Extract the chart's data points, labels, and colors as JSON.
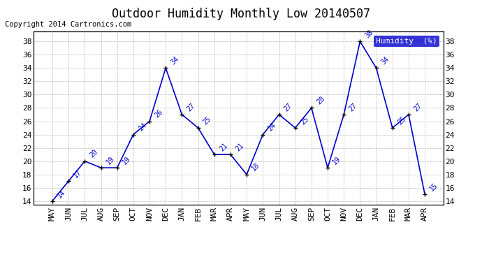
{
  "title": "Outdoor Humidity Monthly Low 20140507",
  "copyright": "Copyright 2014 Cartronics.com",
  "legend_label": "Humidity  (%)",
  "months": [
    "MAY",
    "JUN",
    "JUL",
    "AUG",
    "SEP",
    "OCT",
    "NOV",
    "DEC",
    "JAN",
    "FEB",
    "MAR",
    "APR",
    "MAY",
    "JUN",
    "JUL",
    "AUG",
    "SEP",
    "OCT",
    "NOV",
    "DEC",
    "JAN",
    "FEB",
    "MAR",
    "APR"
  ],
  "values": [
    14,
    17,
    20,
    19,
    19,
    24,
    26,
    34,
    27,
    25,
    21,
    21,
    18,
    24,
    27,
    25,
    28,
    19,
    27,
    38,
    34,
    25,
    27,
    15
  ],
  "ylim": [
    13.5,
    39.5
  ],
  "yticks": [
    14,
    16,
    18,
    20,
    22,
    24,
    26,
    28,
    30,
    32,
    34,
    36,
    38
  ],
  "line_color": "#0000cc",
  "marker_color": "#000000",
  "label_color": "#0000cc",
  "title_color": "#000000",
  "copyright_color": "#000000",
  "grid_color": "#bbbbbb",
  "bg_color": "#ffffff",
  "legend_bg": "#0000cc",
  "legend_text_color": "#ffffff",
  "title_fontsize": 12,
  "copyright_fontsize": 7.5,
  "label_fontsize": 7,
  "tick_fontsize": 8,
  "legend_fontsize": 8,
  "line_width": 1.2,
  "marker_size": 4
}
